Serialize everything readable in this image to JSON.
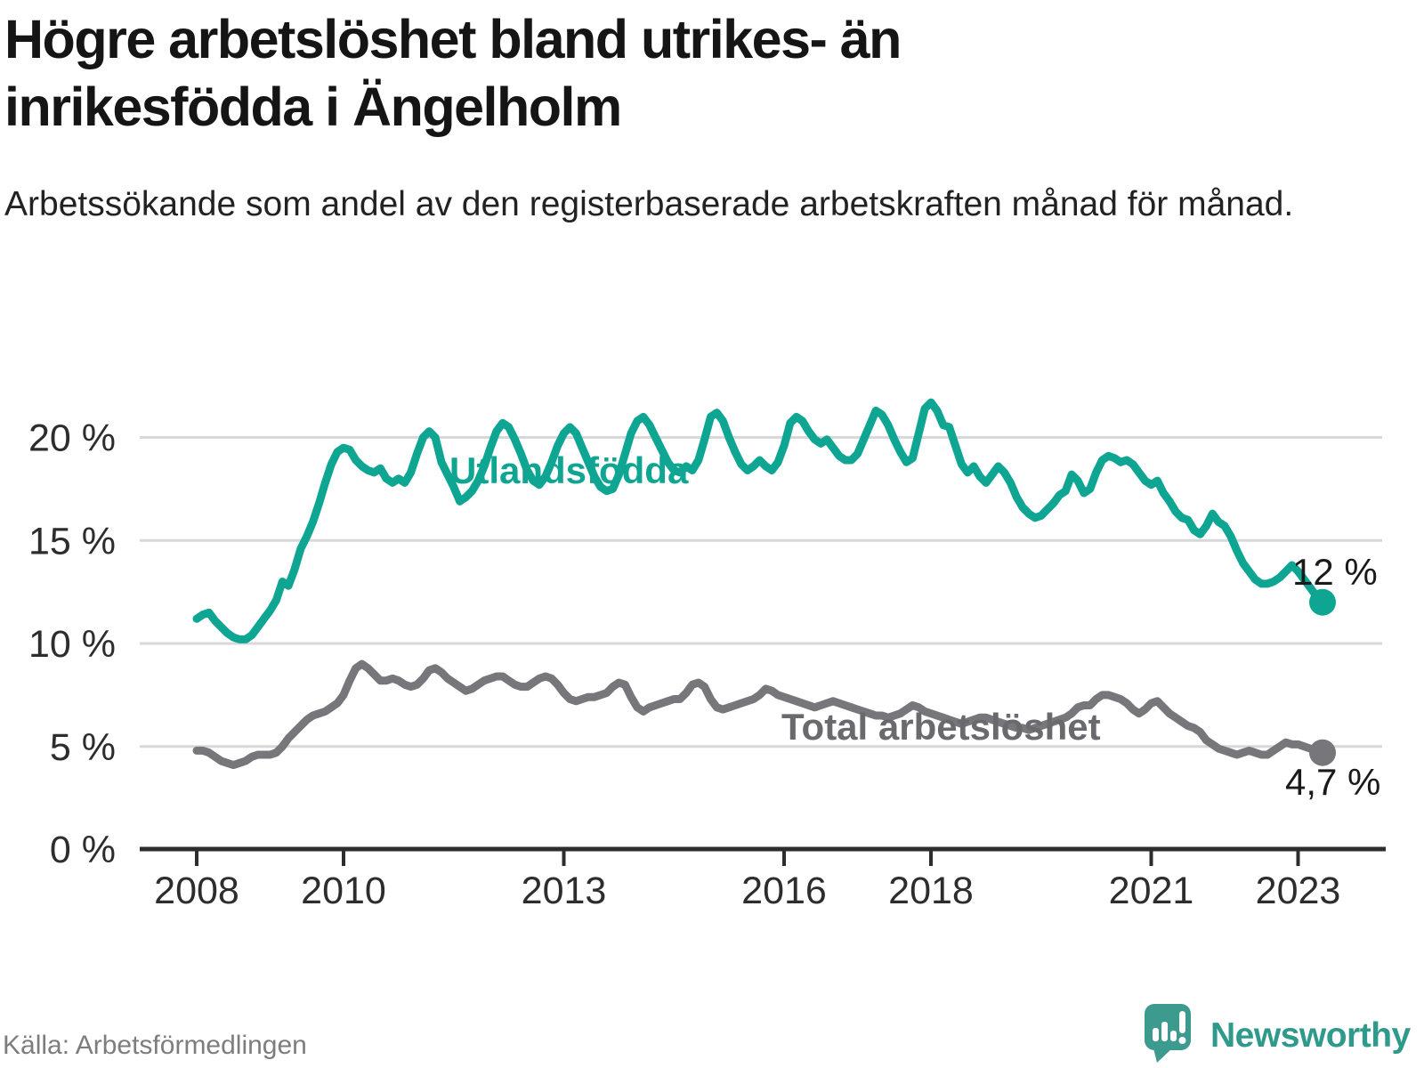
{
  "header": {
    "title": "Högre arbetslöshet bland utrikes- än inrikesfödda i Ängelholm",
    "subtitle": "Arbetssökande som andel av den registerbaserade arbetskraften månad för månad."
  },
  "footer": {
    "source": "Källa: Arbetsförmedlingen",
    "brand": "Newsworthy",
    "brand_icon": "bar-chart-speech-bubble-icon",
    "brand_color": "#3d9a8f"
  },
  "chart_data": {
    "type": "line",
    "frequency": "monthly",
    "start": {
      "year": 2008,
      "month": 1
    },
    "end": {
      "year": 2023,
      "month": 5
    },
    "unit": "%",
    "ylim": [
      0,
      22.5
    ],
    "xlim_years": [
      2007.2,
      2024.2
    ],
    "grid": "horizontal",
    "legend": "inline-labels",
    "y_ticks": [
      {
        "value": 0,
        "label": "0 %"
      },
      {
        "value": 5,
        "label": "5 %"
      },
      {
        "value": 10,
        "label": "10 %"
      },
      {
        "value": 15,
        "label": "15 %"
      },
      {
        "value": 20,
        "label": "20 %"
      }
    ],
    "x_ticks": [
      {
        "value": 2008,
        "label": "2008"
      },
      {
        "value": 2010,
        "label": "2010"
      },
      {
        "value": 2013,
        "label": "2013"
      },
      {
        "value": 2016,
        "label": "2016"
      },
      {
        "value": 2018,
        "label": "2018"
      },
      {
        "value": 2021,
        "label": "2021"
      },
      {
        "value": 2023,
        "label": "2023"
      }
    ],
    "series": [
      {
        "name": "Utlandsfödda",
        "color": "#0ea592",
        "end_label": "12 %",
        "last_value": 12.0,
        "values": [
          11.2,
          11.4,
          11.5,
          11.1,
          10.8,
          10.5,
          10.3,
          10.2,
          10.2,
          10.4,
          10.8,
          11.2,
          11.6,
          12.1,
          13.0,
          12.8,
          13.6,
          14.6,
          15.2,
          15.9,
          16.8,
          17.8,
          18.7,
          19.3,
          19.5,
          19.4,
          18.9,
          18.6,
          18.4,
          18.3,
          18.5,
          18.0,
          17.8,
          18.0,
          17.8,
          18.3,
          19.2,
          20.0,
          20.3,
          20.0,
          18.8,
          18.2,
          17.6,
          16.9,
          17.1,
          17.4,
          17.9,
          18.6,
          19.5,
          20.3,
          20.7,
          20.5,
          19.9,
          19.2,
          18.4,
          17.9,
          17.7,
          18.1,
          18.8,
          19.6,
          20.2,
          20.5,
          20.2,
          19.5,
          18.8,
          18.1,
          17.6,
          17.4,
          17.5,
          18.2,
          19.2,
          20.2,
          20.8,
          21.0,
          20.6,
          20.0,
          19.4,
          18.8,
          18.4,
          18.3,
          18.6,
          18.4,
          18.9,
          19.9,
          21.0,
          21.2,
          20.8,
          20.0,
          19.3,
          18.7,
          18.4,
          18.6,
          18.9,
          18.6,
          18.4,
          18.8,
          19.6,
          20.7,
          21.0,
          20.8,
          20.3,
          19.9,
          19.7,
          19.9,
          19.5,
          19.1,
          18.9,
          18.9,
          19.2,
          19.9,
          20.6,
          21.3,
          21.1,
          20.6,
          19.9,
          19.3,
          18.8,
          19.0,
          20.2,
          21.4,
          21.7,
          21.3,
          20.6,
          20.5,
          19.6,
          18.7,
          18.3,
          18.6,
          18.1,
          17.8,
          18.2,
          18.6,
          18.3,
          17.8,
          17.1,
          16.6,
          16.3,
          16.1,
          16.2,
          16.5,
          16.8,
          17.2,
          17.4,
          18.2,
          17.9,
          17.3,
          17.5,
          18.3,
          18.9,
          19.1,
          19.0,
          18.8,
          18.9,
          18.7,
          18.3,
          17.9,
          17.7,
          17.9,
          17.3,
          16.9,
          16.4,
          16.1,
          16.0,
          15.5,
          15.3,
          15.7,
          16.3,
          15.9,
          15.7,
          15.2,
          14.5,
          13.9,
          13.5,
          13.1,
          12.9,
          12.9,
          13.0,
          13.2,
          13.5,
          13.8,
          13.5,
          13.1,
          12.7,
          12.3,
          12.0
        ]
      },
      {
        "name": "Total arbetslöshet",
        "color": "#77777b",
        "end_label": "4,7 %",
        "last_value": 4.7,
        "values": [
          4.8,
          4.8,
          4.7,
          4.5,
          4.3,
          4.2,
          4.1,
          4.2,
          4.3,
          4.5,
          4.6,
          4.6,
          4.6,
          4.7,
          5.0,
          5.4,
          5.7,
          6.0,
          6.3,
          6.5,
          6.6,
          6.7,
          6.9,
          7.1,
          7.5,
          8.2,
          8.8,
          9.0,
          8.8,
          8.5,
          8.2,
          8.2,
          8.3,
          8.2,
          8.0,
          7.9,
          8.0,
          8.3,
          8.7,
          8.8,
          8.6,
          8.3,
          8.1,
          7.9,
          7.7,
          7.8,
          8.0,
          8.2,
          8.3,
          8.4,
          8.4,
          8.2,
          8.0,
          7.9,
          7.9,
          8.1,
          8.3,
          8.4,
          8.3,
          8.0,
          7.6,
          7.3,
          7.2,
          7.3,
          7.4,
          7.4,
          7.5,
          7.6,
          7.9,
          8.1,
          8.0,
          7.4,
          6.9,
          6.7,
          6.9,
          7.0,
          7.1,
          7.2,
          7.3,
          7.3,
          7.6,
          8.0,
          8.1,
          7.9,
          7.3,
          6.9,
          6.8,
          6.9,
          7.0,
          7.1,
          7.2,
          7.3,
          7.5,
          7.8,
          7.7,
          7.5,
          7.4,
          7.3,
          7.2,
          7.1,
          7.0,
          6.9,
          7.0,
          7.1,
          7.2,
          7.1,
          7.0,
          6.9,
          6.8,
          6.7,
          6.6,
          6.5,
          6.5,
          6.4,
          6.5,
          6.6,
          6.8,
          7.0,
          6.9,
          6.7,
          6.6,
          6.5,
          6.4,
          6.3,
          6.2,
          6.1,
          6.2,
          6.3,
          6.4,
          6.4,
          6.3,
          6.2,
          6.1,
          6.0,
          5.9,
          5.9,
          5.8,
          5.9,
          6.0,
          6.1,
          6.2,
          6.3,
          6.4,
          6.6,
          6.9,
          7.0,
          7.0,
          7.3,
          7.5,
          7.5,
          7.4,
          7.3,
          7.1,
          6.8,
          6.6,
          6.8,
          7.1,
          7.2,
          6.9,
          6.6,
          6.4,
          6.2,
          6.0,
          5.9,
          5.7,
          5.3,
          5.1,
          4.9,
          4.8,
          4.7,
          4.6,
          4.7,
          4.8,
          4.7,
          4.6,
          4.6,
          4.8,
          5.0,
          5.2,
          5.1,
          5.1,
          5.0,
          4.9,
          4.8,
          4.7
        ]
      }
    ]
  }
}
